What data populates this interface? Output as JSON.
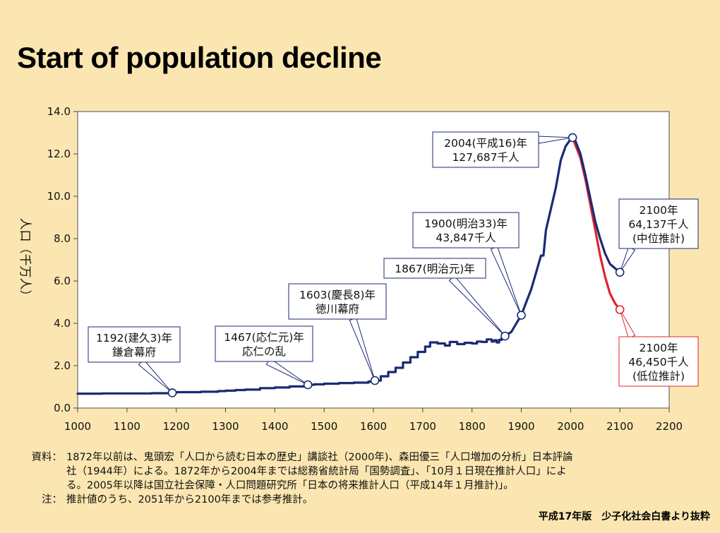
{
  "page": {
    "title": "Start of population decline",
    "source_credit": "平成17年版　少子化社会白書より抜粋"
  },
  "notes": [
    {
      "label": "資料：",
      "lines": [
        "1872年以前は、鬼頭宏「人口から読む日本の歴史」講談社（2000年)、森田優三「人口増加の分析」日本評論",
        "社（1944年）による。1872年から2004年までは総務省統計局「国勢調査」、「10月１日現在推計人口」によ",
        "る。2005年以降は国立社会保障・人口問題研究所「日本の将来推計人口（平成14年１月推計)」。"
      ]
    },
    {
      "label": "注：",
      "lines": [
        "推計値のうち、2051年から2100年までは参考推計。"
      ]
    }
  ],
  "chart_data": {
    "type": "line",
    "title": "Start of population decline",
    "ylabel": "人口（千万人）",
    "xlabel": "",
    "xlim": [
      1000,
      2200
    ],
    "ylim": [
      0,
      14
    ],
    "x_ticks": [
      "1000",
      "1100",
      "1200",
      "1300",
      "1400",
      "1500",
      "1600",
      "1700",
      "1800",
      "1900",
      "2000",
      "2100",
      "2200"
    ],
    "y_ticks": [
      "0.0",
      "2.0",
      "4.0",
      "6.0",
      "8.0",
      "10.0",
      "12.0",
      "14.0"
    ],
    "grid": false,
    "colors": {
      "main": "#1b2a73",
      "low": "#e0242e",
      "box_border": "#1b2a73"
    },
    "series": [
      {
        "key": "main",
        "line_style": "step",
        "points": [
          [
            1000,
            0.68
          ],
          [
            1050,
            0.69
          ],
          [
            1100,
            0.69
          ],
          [
            1150,
            0.7
          ],
          [
            1192,
            0.72
          ],
          [
            1200,
            0.75
          ],
          [
            1250,
            0.77
          ],
          [
            1285,
            0.8
          ],
          [
            1300,
            0.82
          ],
          [
            1320,
            0.85
          ],
          [
            1340,
            0.87
          ],
          [
            1370,
            0.94
          ],
          [
            1400,
            0.97
          ],
          [
            1430,
            1.02
          ],
          [
            1467,
            1.1
          ],
          [
            1480,
            1.12
          ],
          [
            1500,
            1.15
          ],
          [
            1530,
            1.18
          ],
          [
            1560,
            1.2
          ],
          [
            1590,
            1.25
          ],
          [
            1603,
            1.3
          ],
          [
            1615,
            1.5
          ],
          [
            1630,
            1.7
          ],
          [
            1645,
            1.9
          ],
          [
            1660,
            2.15
          ],
          [
            1675,
            2.4
          ],
          [
            1690,
            2.65
          ],
          [
            1705,
            2.9
          ],
          [
            1715,
            3.1
          ],
          [
            1730,
            3.05
          ],
          [
            1745,
            2.95
          ],
          [
            1755,
            3.12
          ],
          [
            1770,
            3.02
          ],
          [
            1785,
            3.08
          ],
          [
            1800,
            3.05
          ],
          [
            1810,
            3.14
          ],
          [
            1820,
            3.12
          ],
          [
            1830,
            3.24
          ],
          [
            1840,
            3.14
          ],
          [
            1845,
            3.2
          ],
          [
            1850,
            3.1
          ],
          [
            1855,
            3.22
          ],
          [
            1860,
            3.28
          ],
          [
            1867,
            3.4
          ],
          [
            1880,
            3.6
          ],
          [
            1890,
            4.0
          ],
          [
            1900,
            4.38
          ],
          [
            1910,
            5.0
          ],
          [
            1920,
            5.6
          ],
          [
            1930,
            6.4
          ],
          [
            1940,
            7.2
          ],
          [
            1945,
            7.2
          ],
          [
            1950,
            8.4
          ],
          [
            1960,
            9.4
          ],
          [
            1970,
            10.4
          ],
          [
            1980,
            11.7
          ],
          [
            1990,
            12.36
          ],
          [
            2000,
            12.69
          ],
          [
            2004,
            12.77
          ],
          [
            2010,
            12.6
          ],
          [
            2020,
            12.0
          ],
          [
            2030,
            11.0
          ],
          [
            2040,
            9.9
          ],
          [
            2050,
            8.8
          ],
          [
            2060,
            8.0
          ],
          [
            2070,
            7.3
          ],
          [
            2080,
            6.8
          ],
          [
            2090,
            6.6
          ],
          [
            2100,
            6.41
          ]
        ]
      },
      {
        "key": "low",
        "line_style": "smooth",
        "points": [
          [
            2004,
            12.77
          ],
          [
            2020,
            11.8
          ],
          [
            2030,
            10.8
          ],
          [
            2040,
            9.6
          ],
          [
            2050,
            8.4
          ],
          [
            2060,
            7.2
          ],
          [
            2070,
            6.2
          ],
          [
            2080,
            5.4
          ],
          [
            2090,
            4.95
          ],
          [
            2100,
            4.65
          ]
        ]
      }
    ],
    "annotations": [
      {
        "x": 1192,
        "y": 0.72,
        "lines": [
          "1192(建久3)年",
          "鎌倉幕府"
        ],
        "color": "navy"
      },
      {
        "x": 1467,
        "y": 1.1,
        "lines": [
          "1467(応仁元)年",
          "応仁の乱"
        ],
        "color": "navy"
      },
      {
        "x": 1603,
        "y": 1.3,
        "lines": [
          "1603(慶長8)年",
          "徳川幕府"
        ],
        "color": "navy"
      },
      {
        "x": 1867,
        "y": 3.4,
        "lines": [
          "1867(明治元)年"
        ],
        "color": "navy"
      },
      {
        "x": 1900,
        "y": 4.38,
        "lines": [
          "1900(明治33)年",
          "43,847千人"
        ],
        "color": "navy"
      },
      {
        "x": 2004,
        "y": 12.77,
        "lines": [
          "2004(平成16)年",
          "127,687千人"
        ],
        "color": "navy"
      },
      {
        "x": 2100,
        "y": 6.41,
        "lines": [
          "2100年",
          "64,137千人",
          "(中位推計)"
        ],
        "color": "navy"
      },
      {
        "x": 2100,
        "y": 4.65,
        "lines": [
          "2100年",
          "46,450千人",
          "(低位推計)"
        ],
        "color": "red"
      }
    ]
  }
}
